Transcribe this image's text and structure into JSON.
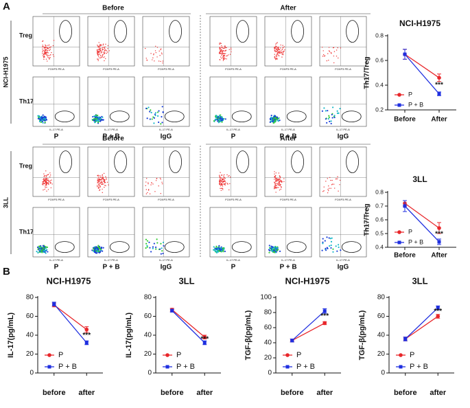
{
  "panel_labels": [
    "A",
    "B"
  ],
  "flow": {
    "blocks": [
      {
        "label": "NCI-H1975",
        "headers": [
          "Before",
          "After"
        ],
        "rows": [
          "Treg",
          "Th17"
        ],
        "row_x_labels": [
          "FOXP3 PE-A",
          "IL-17 PE-A"
        ],
        "columns": [
          "P",
          "P + B",
          "IgG",
          "P",
          "P + B",
          "IgG"
        ]
      },
      {
        "label": "3LL",
        "headers": [
          "Before",
          "After"
        ],
        "rows": [
          "Treg",
          "Th17"
        ],
        "row_x_labels": [
          "FOXP3 PE-A",
          "IL-17 PE-A"
        ],
        "columns": [
          "P",
          "P + B",
          "IgG",
          "P",
          "P + B",
          "IgG"
        ]
      }
    ]
  },
  "chart_data": [
    {
      "type": "line",
      "title": "NCI-H1975",
      "y_label": "Th17/Treg",
      "categories": [
        "Before",
        "After"
      ],
      "series": [
        {
          "name": "P",
          "color": "#e8262a",
          "marker": "circle",
          "values": [
            0.65,
            0.46
          ],
          "errors": [
            0.04,
            0.03
          ]
        },
        {
          "name": "P + B",
          "color": "#1f2fe0",
          "marker": "square",
          "values": [
            0.65,
            0.33
          ],
          "errors": [
            0.04,
            0.015
          ]
        }
      ],
      "ylim": [
        0.2,
        0.8
      ],
      "yticks": [
        0.2,
        0.4,
        0.6,
        0.8
      ],
      "annotation": "***",
      "legend": "lower left"
    },
    {
      "type": "line",
      "title": "3LL",
      "y_label": "Th17/Treg",
      "categories": [
        "Before",
        "After"
      ],
      "series": [
        {
          "name": "P",
          "color": "#e8262a",
          "marker": "circle",
          "values": [
            0.72,
            0.54
          ],
          "errors": [
            0.02,
            0.04
          ]
        },
        {
          "name": "P + B",
          "color": "#1f2fe0",
          "marker": "square",
          "values": [
            0.7,
            0.44
          ],
          "errors": [
            0.04,
            0.02
          ]
        }
      ],
      "ylim": [
        0.4,
        0.8
      ],
      "yticks": [
        0.4,
        0.5,
        0.6,
        0.7,
        0.8
      ],
      "annotation": "***",
      "legend": "lower left"
    },
    {
      "type": "line",
      "title": "NCI-H1975",
      "y_label": "IL-17(pg/mL)",
      "categories": [
        "before",
        "after"
      ],
      "series": [
        {
          "name": "P",
          "color": "#e8262a",
          "marker": "circle",
          "values": [
            72,
            46
          ],
          "errors": [
            2,
            3
          ]
        },
        {
          "name": "P + B",
          "color": "#1f2fe0",
          "marker": "square",
          "values": [
            73,
            32
          ],
          "errors": [
            2,
            2
          ]
        }
      ],
      "ylim": [
        0,
        80
      ],
      "yticks": [
        0,
        20,
        40,
        60,
        80
      ],
      "annotation": "***",
      "legend": "lower left"
    },
    {
      "type": "line",
      "title": "3LL",
      "y_label": "IL-17(pg/mL)",
      "categories": [
        "before",
        "after"
      ],
      "series": [
        {
          "name": "P",
          "color": "#e8262a",
          "marker": "circle",
          "values": [
            67,
            38
          ],
          "errors": [
            1.5,
            2
          ]
        },
        {
          "name": "P + B",
          "color": "#1f2fe0",
          "marker": "square",
          "values": [
            66,
            32
          ],
          "errors": [
            1.5,
            2
          ]
        }
      ],
      "ylim": [
        0,
        80
      ],
      "yticks": [
        0,
        20,
        40,
        60,
        80
      ],
      "annotation": "***",
      "legend": "lower left"
    },
    {
      "type": "line",
      "title": "NCI-H1975",
      "y_label": "TGF-β(pg/mL)",
      "categories": [
        "before",
        "after"
      ],
      "series": [
        {
          "name": "P",
          "color": "#e8262a",
          "marker": "circle",
          "values": [
            43,
            66
          ],
          "errors": [
            2,
            2
          ]
        },
        {
          "name": "P + B",
          "color": "#1f2fe0",
          "marker": "square",
          "values": [
            43,
            82
          ],
          "errors": [
            2,
            3
          ]
        }
      ],
      "ylim": [
        0,
        100
      ],
      "yticks": [
        0,
        20,
        40,
        60,
        80,
        100
      ],
      "annotation": "***",
      "legend": "lower left"
    },
    {
      "type": "line",
      "title": "3LL",
      "y_label": "TGF-β(pg/mL)",
      "categories": [
        "before",
        "after"
      ],
      "series": [
        {
          "name": "P",
          "color": "#e8262a",
          "marker": "circle",
          "values": [
            36,
            60
          ],
          "errors": [
            2,
            2
          ]
        },
        {
          "name": "P + B",
          "color": "#1f2fe0",
          "marker": "square",
          "values": [
            36,
            69
          ],
          "errors": [
            2,
            2
          ]
        }
      ],
      "ylim": [
        0,
        80
      ],
      "yticks": [
        0,
        20,
        40,
        60,
        80
      ],
      "annotation": "***",
      "legend": "lower left"
    }
  ]
}
